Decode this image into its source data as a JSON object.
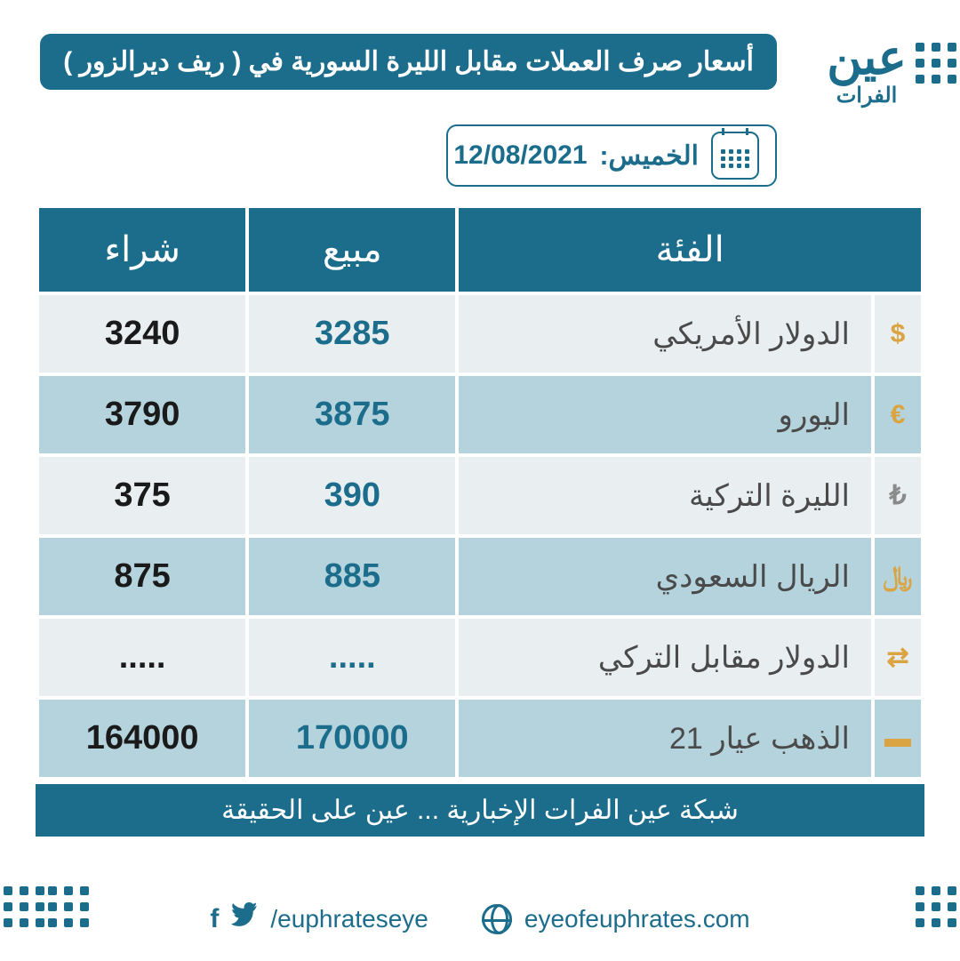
{
  "brand": {
    "line1": "عين",
    "line2": "الفرات"
  },
  "header": {
    "title": "أسعار صرف العملات مقابل الليرة السورية  في ( ريف ديرالزور )"
  },
  "date_chip": {
    "day_label": "الخميس:",
    "date": "12/08/2021"
  },
  "table": {
    "columns": {
      "category": "الفئة",
      "sell": "مبيع",
      "buy": "شراء"
    },
    "rows": [
      {
        "icon": "$",
        "icon_color": "#d9a441",
        "label": "الدولار الأمريكي",
        "sell": "3285",
        "buy": "3240"
      },
      {
        "icon": "€",
        "icon_color": "#d9a441",
        "label": "اليورو",
        "sell": "3875",
        "buy": "3790"
      },
      {
        "icon": "₺",
        "icon_color": "#8a8a8a",
        "label": "الليرة التركية",
        "sell": "390",
        "buy": "375"
      },
      {
        "icon": "﷼",
        "icon_color": "#d9a441",
        "label": "الريال السعودي",
        "sell": "885",
        "buy": "875"
      },
      {
        "icon": "⇄",
        "icon_color": "#d9a441",
        "label": "الدولار مقابل التركي",
        "sell": ".....",
        "buy": "....."
      },
      {
        "icon": "▬",
        "icon_color": "#d9a441",
        "label": "الذهب عيار 21",
        "sell": "170000",
        "buy": "164000"
      }
    ],
    "footer_text": "شبكة عين الفرات الإخبارية ... عين على الحقيقة"
  },
  "footer_links": {
    "website": "eyeofeuphrates.com",
    "social_handle": "/euphrateseye"
  },
  "colors": {
    "primary": "#1c6d8c",
    "row_light": "#e9eef0",
    "row_dark": "#b5d3dc",
    "text_dark": "#1a1a1a",
    "text_muted": "#4a4a4a",
    "background": "#ffffff"
  }
}
